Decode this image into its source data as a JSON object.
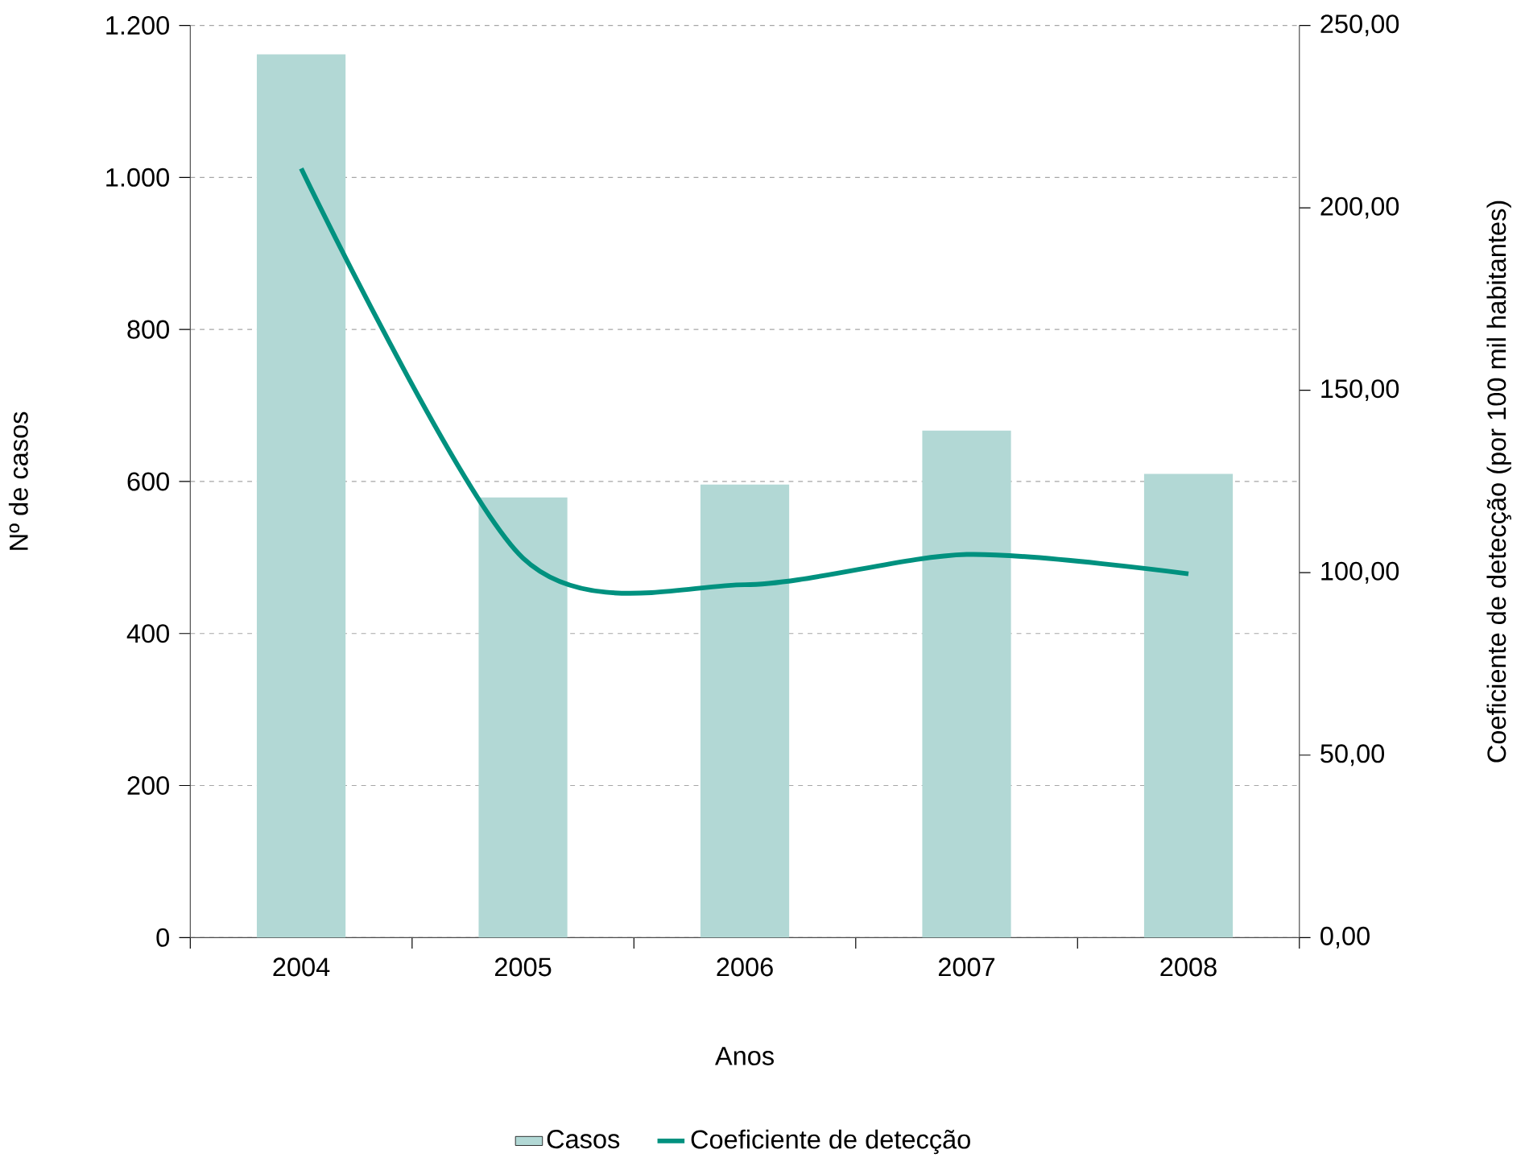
{
  "chart_data": {
    "type": "bar",
    "categories": [
      "2004",
      "2005",
      "2006",
      "2007",
      "2008"
    ],
    "series": [
      {
        "name": "Casos",
        "color": "#b2d8d5",
        "values": [
          1162,
          579,
          596,
          667,
          610
        ]
      },
      {
        "name": "Coeficiente de detecção",
        "type": "line",
        "axis": "y2",
        "color": "#00917f",
        "values": [
          210.8,
          104,
          96.7,
          105,
          99.7
        ]
      }
    ],
    "xlabel": "Anos",
    "ylabel": "Nº de casos",
    "y2label": "Coeficiente de detecção (por 100 mil habitantes)",
    "ylim": [
      0,
      1200
    ],
    "yticks": [
      0,
      200,
      400,
      600,
      800,
      {
        "value": 1000,
        "label": "1.000"
      },
      {
        "value": 1200,
        "label": "1.200"
      }
    ],
    "y2lim": [
      0,
      250
    ],
    "y2ticks": [
      {
        "value": 0,
        "label": "0,00"
      },
      {
        "value": 50,
        "label": "50,00"
      },
      {
        "value": 100,
        "label": "100,00"
      },
      {
        "value": 150,
        "label": "150,00"
      },
      {
        "value": 200,
        "label": "200,00"
      },
      {
        "value": 250,
        "label": "250,00"
      }
    ],
    "grid": "y",
    "legend": "bottom"
  }
}
